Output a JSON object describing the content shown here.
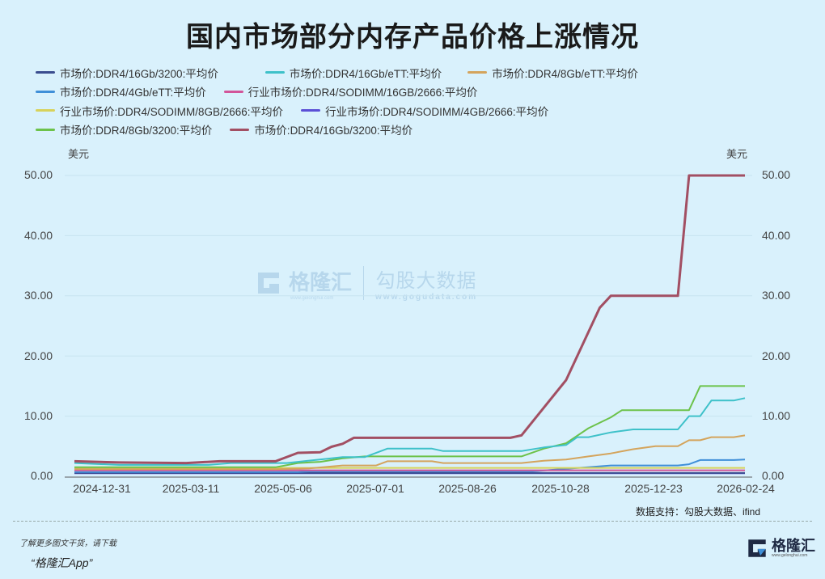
{
  "title": "国内市场部分内存产品价格上涨情况",
  "legend": [
    [
      {
        "label": "市场价:DDR4/16Gb/3200:平均价",
        "color": "#3a4d8f"
      },
      {
        "label": "市场价:DDR4/16Gb/eTT:平均价",
        "color": "#3ec1c9"
      },
      {
        "label": "市场价:DDR4/8Gb/eTT:平均价",
        "color": "#d4a45c"
      }
    ],
    [
      {
        "label": "市场价:DDR4/4Gb/eTT:平均价",
        "color": "#3f8fd8"
      },
      {
        "label": "行业市场价:DDR4/SODIMM/16GB/2666:平均价",
        "color": "#d2559a"
      }
    ],
    [
      {
        "label": "行业市场价:DDR4/SODIMM/8GB/2666:平均价",
        "color": "#d8d25a"
      },
      {
        "label": "行业市场价:DDR4/SODIMM/4GB/2666:平均价",
        "color": "#5b4fd6"
      }
    ],
    [
      {
        "label": "市场价:DDR4/8Gb/3200:平均价",
        "color": "#6cc24a"
      },
      {
        "label": "市场价:DDR4/16Gb/3200:平均价",
        "color": "#a24f63"
      }
    ]
  ],
  "axis": {
    "unit_left": "美元",
    "unit_right": "美元",
    "y_ticks": [
      "0.00",
      "10.00",
      "20.00",
      "30.00",
      "40.00",
      "50.00"
    ],
    "x_ticks": [
      "2024-12-31",
      "2025-03-11",
      "2025-05-06",
      "2025-07-01",
      "2025-08-26",
      "2025-10-28",
      "2025-12-23",
      "2026-02-24"
    ]
  },
  "source": "数据支持：勾股大数据、ifind",
  "footer": {
    "line1": "了解更多图文干货，请下载",
    "line2": "“格隆汇App”"
  },
  "brand": {
    "name": "格隆汇",
    "url": "www.gelonghui.com"
  },
  "watermark": {
    "left_name": "格隆汇",
    "left_url": "www.gelonghui.com",
    "right_name": "勾股大数据",
    "right_url": "www.gogudata.com"
  },
  "chart_data": {
    "type": "line",
    "title": "国内市场部分内存产品价格上涨情况",
    "xlabel": "",
    "ylabel": "美元",
    "ylim": [
      0,
      50
    ],
    "grid": true,
    "legend_position": "top",
    "x_ticks": [
      "2024-12-31",
      "2025-03-11",
      "2025-05-06",
      "2025-07-01",
      "2025-08-26",
      "2025-10-28",
      "2025-12-23",
      "2026-02-24"
    ],
    "x_note": "weekly points, index 0 = 2024-12-31, index 60 = 2026-02-24",
    "series": [
      {
        "name": "市场价:DDR4/16Gb/3200:平均价 (红)",
        "color": "#a24f63",
        "points": [
          [
            0,
            2.5
          ],
          [
            4,
            2.3
          ],
          [
            10,
            2.2
          ],
          [
            13,
            2.5
          ],
          [
            18,
            2.5
          ],
          [
            20,
            3.9
          ],
          [
            22,
            4.0
          ],
          [
            23,
            4.9
          ],
          [
            24,
            5.4
          ],
          [
            25,
            6.4
          ],
          [
            39,
            6.4
          ],
          [
            40,
            6.8
          ],
          [
            44,
            16
          ],
          [
            47,
            28
          ],
          [
            48,
            30
          ],
          [
            54,
            30
          ],
          [
            55,
            50
          ],
          [
            60,
            50
          ]
        ]
      },
      {
        "name": "市场价:DDR4/16Gb/eTT:平均价",
        "color": "#3ec1c9",
        "points": [
          [
            0,
            2.2
          ],
          [
            4,
            1.9
          ],
          [
            12,
            1.9
          ],
          [
            14,
            2.2
          ],
          [
            19,
            2.2
          ],
          [
            23,
            3.0
          ],
          [
            24,
            3.2
          ],
          [
            26,
            3.2
          ],
          [
            28,
            4.6
          ],
          [
            32,
            4.6
          ],
          [
            33,
            4.2
          ],
          [
            40,
            4.2
          ],
          [
            42,
            4.8
          ],
          [
            44,
            5.2
          ],
          [
            45,
            6.5
          ],
          [
            46,
            6.5
          ],
          [
            48,
            7.3
          ],
          [
            50,
            7.8
          ],
          [
            54,
            7.8
          ],
          [
            55,
            10
          ],
          [
            56,
            10
          ],
          [
            57,
            12.6
          ],
          [
            59,
            12.6
          ],
          [
            60,
            13.0
          ]
        ]
      },
      {
        "name": "市场价:DDR4/8Gb/3200:平均价",
        "color": "#6cc24a",
        "points": [
          [
            0,
            1.5
          ],
          [
            18,
            1.5
          ],
          [
            20,
            2.2
          ],
          [
            22,
            2.4
          ],
          [
            24,
            3.0
          ],
          [
            26,
            3.3
          ],
          [
            40,
            3.3
          ],
          [
            42,
            4.6
          ],
          [
            44,
            5.5
          ],
          [
            46,
            8.0
          ],
          [
            48,
            9.8
          ],
          [
            49,
            11
          ],
          [
            54,
            11
          ],
          [
            55,
            11
          ],
          [
            56,
            15
          ],
          [
            60,
            15
          ]
        ]
      },
      {
        "name": "市场价:DDR4/8Gb/eTT:平均价",
        "color": "#d4a45c",
        "points": [
          [
            0,
            1.2
          ],
          [
            18,
            1.2
          ],
          [
            21,
            1.3
          ],
          [
            24,
            1.8
          ],
          [
            27,
            1.8
          ],
          [
            28,
            2.5
          ],
          [
            32,
            2.5
          ],
          [
            33,
            2.2
          ],
          [
            40,
            2.2
          ],
          [
            42,
            2.6
          ],
          [
            44,
            2.8
          ],
          [
            46,
            3.3
          ],
          [
            48,
            3.8
          ],
          [
            50,
            4.5
          ],
          [
            52,
            5.0
          ],
          [
            54,
            5.0
          ],
          [
            55,
            6.0
          ],
          [
            56,
            6.0
          ],
          [
            57,
            6.5
          ],
          [
            59,
            6.5
          ],
          [
            60,
            6.8
          ]
        ]
      },
      {
        "name": "行业市场价:DDR4/SODIMM/8GB/2666:平均价",
        "color": "#d8d25a",
        "points": [
          [
            0,
            1.4
          ],
          [
            18,
            1.4
          ],
          [
            60,
            1.4
          ]
        ]
      },
      {
        "name": "行业市场价:DDR4/SODIMM/16GB/2666:平均价",
        "color": "#d2559a",
        "points": [
          [
            0,
            1.0
          ],
          [
            60,
            1.0
          ]
        ]
      },
      {
        "name": "市场价:DDR4/4Gb/eTT:平均价",
        "color": "#3f8fd8",
        "points": [
          [
            0,
            0.7
          ],
          [
            20,
            0.7
          ],
          [
            21,
            0.8
          ],
          [
            41,
            0.8
          ],
          [
            43,
            1.1
          ],
          [
            46,
            1.5
          ],
          [
            48,
            1.8
          ],
          [
            54,
            1.8
          ],
          [
            55,
            2.0
          ],
          [
            56,
            2.7
          ],
          [
            59,
            2.7
          ],
          [
            60,
            2.8
          ]
        ]
      },
      {
        "name": "市场价:DDR4/16Gb/3200:平均价 (深蓝)",
        "color": "#3a4d8f",
        "points": [
          [
            0,
            0.55
          ],
          [
            60,
            0.55
          ]
        ]
      },
      {
        "name": "行业市场价:DDR4/SODIMM/4GB/2666:平均价",
        "color": "#5b4fd6",
        "points": [
          [
            0,
            0.5
          ],
          [
            60,
            0.5
          ]
        ]
      }
    ]
  }
}
